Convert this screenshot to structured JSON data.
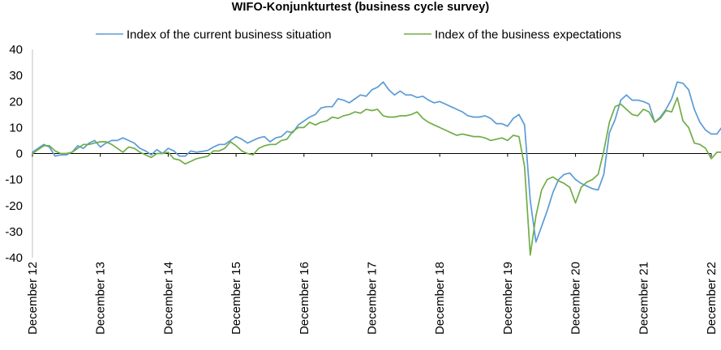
{
  "chart_data": {
    "type": "line",
    "title": "WIFO-Konjunkturtest (business cycle survey)",
    "xlabel": "",
    "ylabel": "",
    "ylim": [
      -40,
      40
    ],
    "y_ticks": [
      40,
      30,
      20,
      10,
      0,
      -10,
      -20,
      -30,
      -40
    ],
    "x_ticks": [
      "December 12",
      "December 13",
      "December 14",
      "December 15",
      "December 16",
      "December 17",
      "December 18",
      "December 19",
      "December 20",
      "December 21",
      "December 22"
    ],
    "x_range_months": [
      0,
      120
    ],
    "grid": false,
    "legend": "top",
    "series": [
      {
        "name": "Index of the current business situation",
        "color": "#5b9bd5",
        "values": [
          0.5,
          2,
          3.5,
          2.5,
          -1,
          -0.5,
          -0.5,
          0.5,
          3,
          2,
          4,
          5,
          2.5,
          4,
          5,
          5,
          6,
          5,
          4,
          2,
          1,
          -0.5,
          1.5,
          0,
          2,
          1,
          -1,
          -1,
          1,
          0.5,
          0.8,
          1.2,
          2.5,
          3.5,
          3.5,
          5,
          6.5,
          5.5,
          4,
          5,
          6,
          6.5,
          4.5,
          6,
          6.5,
          8.5,
          8,
          11,
          12.5,
          14,
          15,
          17.5,
          18,
          18,
          21,
          20.5,
          19.5,
          21,
          22.5,
          22,
          24.5,
          25.5,
          27.5,
          24.5,
          22.5,
          24,
          22.5,
          22.5,
          21.5,
          22,
          20.5,
          19.5,
          20,
          19,
          18,
          17,
          16,
          14.5,
          14,
          14,
          14.5,
          13.5,
          11.5,
          11.5,
          10.5,
          13.5,
          15,
          11,
          -18,
          -34,
          -28,
          -22,
          -15,
          -10,
          -8,
          -7.5,
          -10,
          -11.5,
          -12.5,
          -13.5,
          -14,
          -8,
          8,
          13,
          20.5,
          22.5,
          20.5,
          20.5,
          20,
          19,
          12,
          14,
          17,
          21,
          27.5,
          27,
          24.5,
          17,
          12,
          9,
          7.5,
          7.5,
          10.5
        ]
      },
      {
        "name": "Index of the business expectations",
        "color": "#70ad47",
        "values": [
          0,
          1.5,
          3,
          3,
          1,
          0,
          0,
          0.5,
          2,
          3.5,
          3.5,
          4,
          4.5,
          4.5,
          3.5,
          2,
          0.5,
          2.5,
          2,
          0.5,
          -0.5,
          -1.5,
          0,
          0,
          0.5,
          -2,
          -2.5,
          -4,
          -3,
          -2,
          -1.5,
          -1,
          1,
          1,
          2,
          4.5,
          3,
          1,
          0,
          -0.5,
          2,
          3,
          3.5,
          3.5,
          5,
          5.5,
          8.5,
          10,
          10,
          12,
          11,
          12,
          12.5,
          14,
          13.5,
          14.5,
          15,
          16,
          15.5,
          17,
          16.5,
          17,
          14.5,
          14,
          14,
          14.5,
          14.5,
          15,
          16,
          13.5,
          12,
          11,
          10,
          9,
          8,
          7,
          7.5,
          7,
          6.5,
          6.5,
          6,
          5,
          5.5,
          6,
          5,
          7,
          6.5,
          -5,
          -39,
          -24,
          -14,
          -10,
          -9,
          -10.5,
          -11.5,
          -13,
          -19,
          -13,
          -11,
          -10,
          -8,
          1,
          12,
          18,
          19,
          17,
          15,
          14.5,
          17,
          16,
          12,
          13.5,
          16.5,
          16,
          21.5,
          12.5,
          10,
          4,
          3.5,
          2,
          -2,
          0.5,
          0.5
        ]
      }
    ]
  }
}
